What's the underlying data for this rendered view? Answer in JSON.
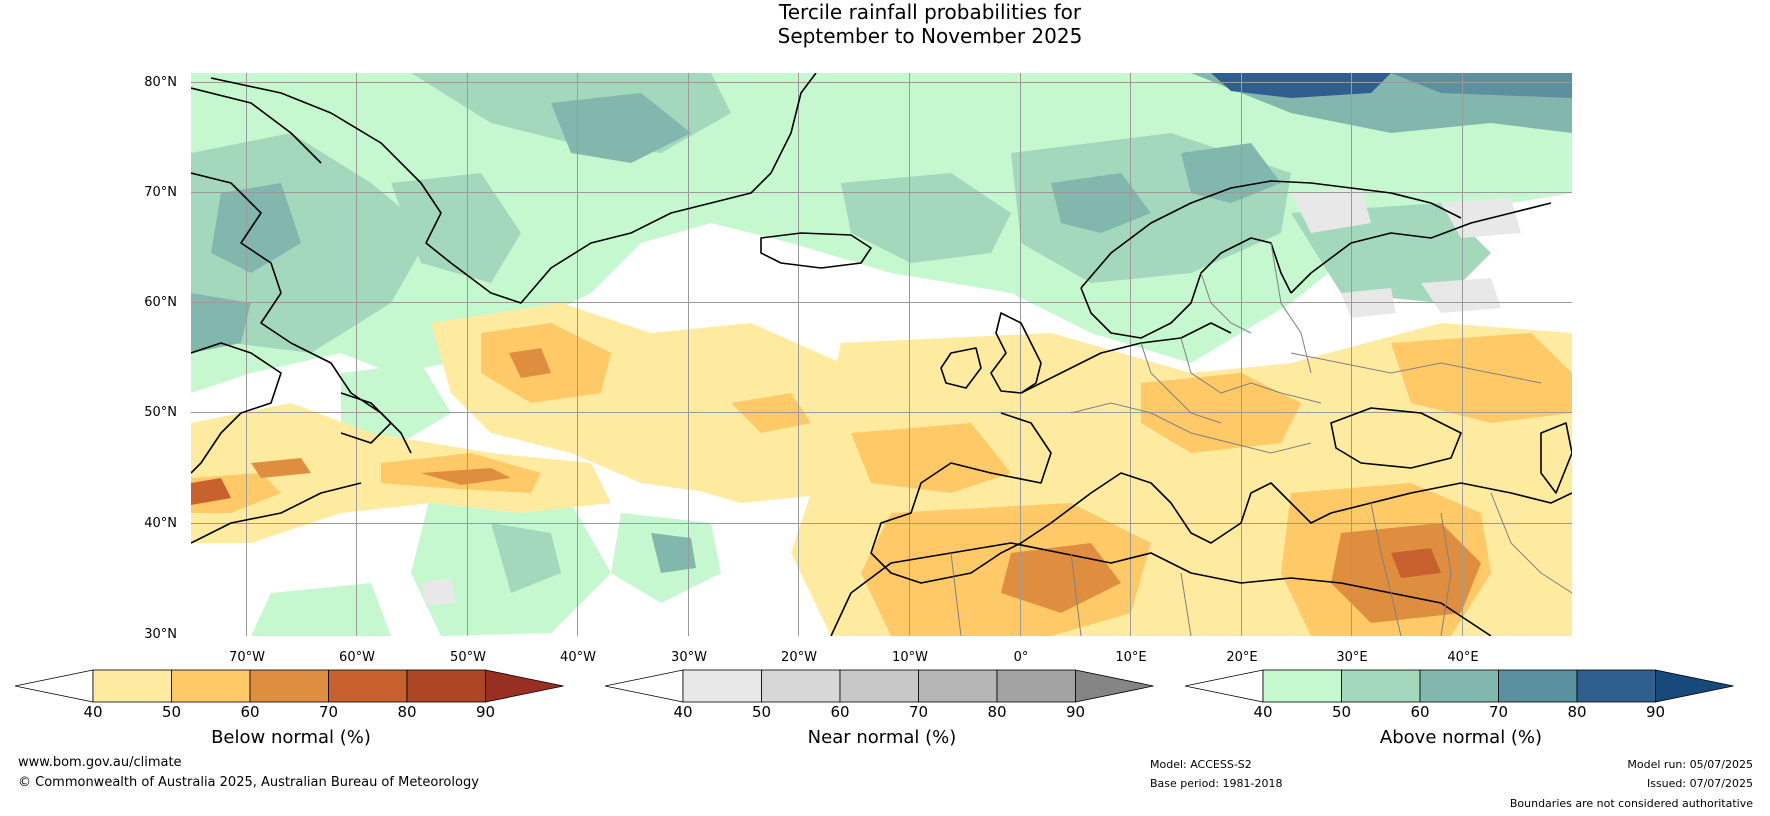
{
  "title": {
    "line1": "Tercile rainfall probabilities for",
    "line2": "September to November 2025"
  },
  "map": {
    "lat_labels": [
      "80°N",
      "70°N",
      "60°N",
      "50°N",
      "40°N",
      "30°N"
    ],
    "lon_labels": [
      "70°W",
      "60°W",
      "50°W",
      "40°W",
      "30°W",
      "20°W",
      "10°W",
      "0°",
      "10°E",
      "20°E",
      "30°E",
      "40°E"
    ],
    "lon_range": [
      -80,
      50
    ],
    "lat_range": [
      30,
      81
    ]
  },
  "colorbars": [
    {
      "title": "Below normal (%)",
      "ticks": [
        "40",
        "50",
        "60",
        "70",
        "80",
        "90"
      ],
      "colors": [
        "#ffffff",
        "#feeba0",
        "#fec966",
        "#df8e40",
        "#c9612e",
        "#ad4625",
        "#973022"
      ]
    },
    {
      "title": "Near normal (%)",
      "ticks": [
        "40",
        "50",
        "60",
        "70",
        "80",
        "90"
      ],
      "colors": [
        "#ffffff",
        "#e8e8e8",
        "#d7d7d7",
        "#c8c8c8",
        "#b6b6b6",
        "#a2a2a2",
        "#858585"
      ]
    },
    {
      "title": "Above normal (%)",
      "ticks": [
        "40",
        "50",
        "60",
        "70",
        "80",
        "90"
      ],
      "colors": [
        "#ffffff",
        "#c6f8cf",
        "#a3d8bd",
        "#82b7ad",
        "#5b90a0",
        "#2e5f8f",
        "#174a7b"
      ]
    }
  ],
  "footer": {
    "website": "www.bom.gov.au/climate",
    "copyright": "© Commonwealth of Australia 2025, Australian Bureau of Meteorology",
    "model": "Model: ACCESS-S2",
    "base_period": "Base period: 1981-2018",
    "model_run": "Model run: 05/07/2025",
    "issued": "Issued: 07/07/2025",
    "disclaimer": "Boundaries are not considered authoritative"
  }
}
